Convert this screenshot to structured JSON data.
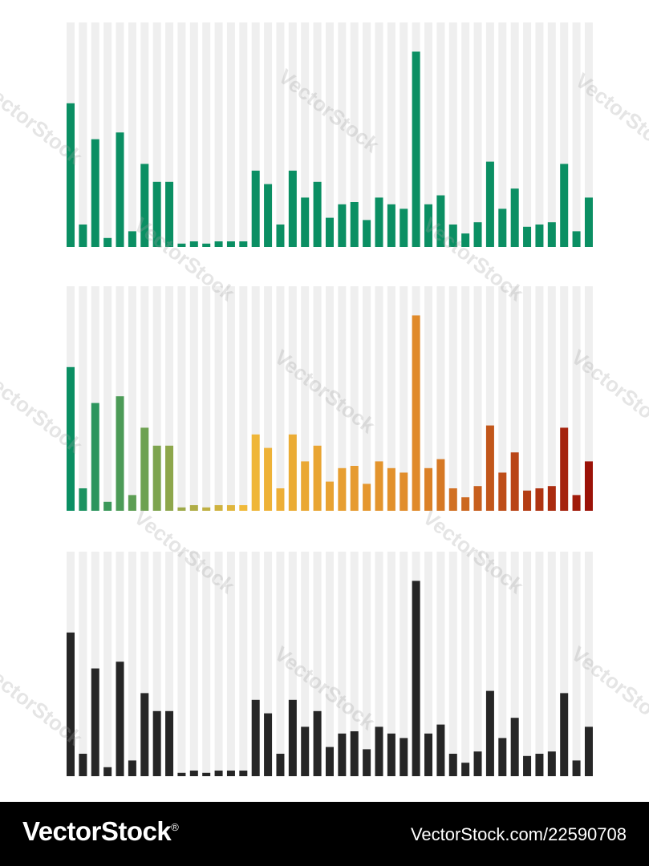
{
  "chart_data": [
    {
      "type": "bar",
      "colors": [
        "#0b8f63"
      ],
      "values": [
        0.64,
        0.1,
        0.48,
        0.04,
        0.51,
        0.07,
        0.37,
        0.29,
        0.29,
        0.015,
        0.025,
        0.015,
        0.025,
        0.025,
        0.025,
        0.34,
        0.28,
        0.1,
        0.34,
        0.22,
        0.29,
        0.13,
        0.19,
        0.2,
        0.12,
        0.22,
        0.19,
        0.17,
        0.87,
        0.19,
        0.23,
        0.1,
        0.06,
        0.11,
        0.38,
        0.17,
        0.26,
        0.09,
        0.1,
        0.11,
        0.37,
        0.07,
        0.22
      ],
      "ylim": [
        0,
        1
      ],
      "grid": true
    },
    {
      "type": "bar",
      "colors": [
        "#0b8f63",
        "#f0b93a",
        "#e08a2a",
        "#9b1208"
      ],
      "values": [
        0.64,
        0.1,
        0.48,
        0.04,
        0.51,
        0.07,
        0.37,
        0.29,
        0.29,
        0.015,
        0.025,
        0.015,
        0.025,
        0.025,
        0.025,
        0.34,
        0.28,
        0.1,
        0.34,
        0.22,
        0.29,
        0.13,
        0.19,
        0.2,
        0.12,
        0.22,
        0.19,
        0.17,
        0.87,
        0.19,
        0.23,
        0.1,
        0.06,
        0.11,
        0.38,
        0.17,
        0.26,
        0.09,
        0.1,
        0.11,
        0.37,
        0.07,
        0.22
      ],
      "ylim": [
        0,
        1
      ],
      "grid": true
    },
    {
      "type": "bar",
      "colors": [
        "#262626"
      ],
      "values": [
        0.64,
        0.1,
        0.48,
        0.04,
        0.51,
        0.07,
        0.37,
        0.29,
        0.29,
        0.015,
        0.025,
        0.015,
        0.025,
        0.025,
        0.025,
        0.34,
        0.28,
        0.1,
        0.34,
        0.22,
        0.29,
        0.13,
        0.19,
        0.2,
        0.12,
        0.22,
        0.19,
        0.17,
        0.87,
        0.19,
        0.23,
        0.1,
        0.06,
        0.11,
        0.38,
        0.17,
        0.26,
        0.09,
        0.1,
        0.11,
        0.37,
        0.07,
        0.22
      ],
      "ylim": [
        0,
        1
      ],
      "grid": true
    }
  ],
  "watermark": "VectorStock",
  "footer": {
    "logo": "VectorStock",
    "logo_mark": "®",
    "image_id": "VectorStock.com/22590708"
  }
}
